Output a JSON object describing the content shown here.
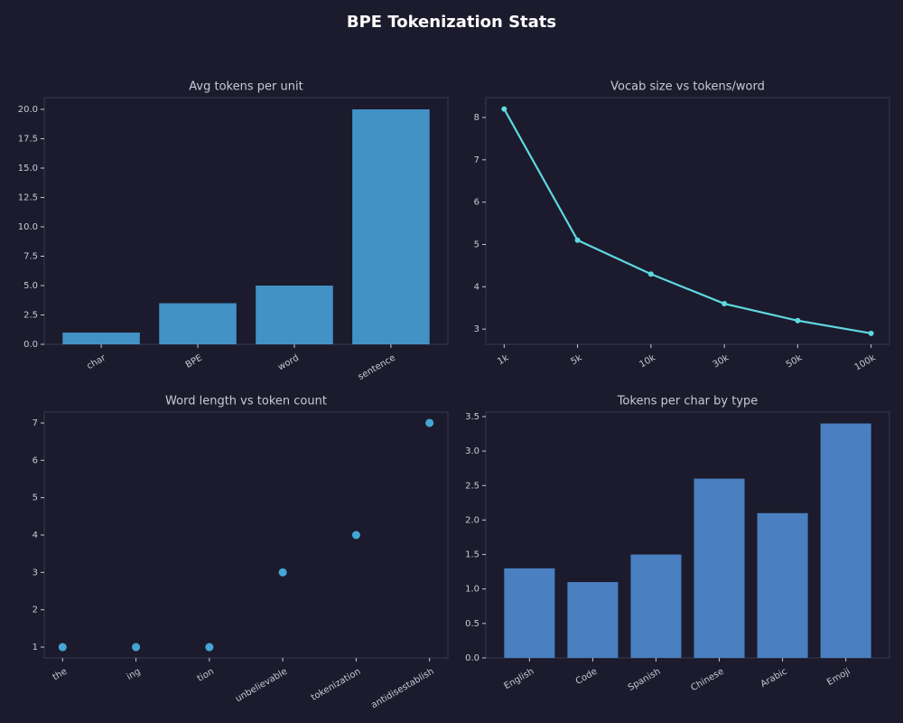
{
  "title": "BPE Tokenization Stats",
  "chart_data": [
    {
      "type": "bar",
      "title": "Avg tokens per unit",
      "categories": [
        "char",
        "BPE",
        "word",
        "sentence"
      ],
      "values": [
        1,
        3.5,
        5,
        20
      ],
      "color": "#4292c6",
      "ylim": [
        0,
        21
      ],
      "yticks": [
        {
          "value": 0,
          "label": "0.0"
        },
        2.5,
        {
          "value": 5,
          "label": "5.0"
        },
        7.5,
        {
          "value": 10,
          "label": "10.0"
        },
        12.5,
        {
          "value": 15,
          "label": "15.0"
        },
        17.5,
        {
          "value": 20,
          "label": "20.0"
        }
      ]
    },
    {
      "type": "line",
      "title": "Vocab size vs tokens/word",
      "categories": [
        "1k",
        "5k",
        "10k",
        "30k",
        "50k",
        "100k"
      ],
      "values": [
        8.2,
        5.1,
        4.3,
        3.6,
        3.2,
        2.9
      ],
      "color": "#5fd8df",
      "ylim": [
        2.64,
        8.47
      ],
      "yticks": [
        3,
        4,
        5,
        6,
        7,
        8
      ]
    },
    {
      "type": "scatter",
      "title": "Word length vs token count",
      "categories": [
        "the",
        "ing",
        "tion",
        "unbelievable",
        "tokenization",
        "antidisestablish"
      ],
      "values": [
        1,
        1,
        1,
        3,
        4,
        7
      ],
      "color": "#45a6d6",
      "ylim": [
        0.71,
        7.29
      ],
      "yticks": [
        1,
        2,
        3,
        4,
        5,
        6,
        7
      ]
    },
    {
      "type": "bar",
      "title": "Tokens per char by type",
      "categories": [
        "English",
        "Code",
        "Spanish",
        "Chinese",
        "Arabic",
        "Emoji"
      ],
      "values": [
        1.3,
        1.1,
        1.5,
        2.6,
        2.1,
        3.4
      ],
      "color": "#4a7fc1",
      "ylim": [
        0,
        3.565
      ],
      "yticks": [
        {
          "value": 0,
          "label": "0.0"
        },
        0.5,
        {
          "value": 1,
          "label": "1.0"
        },
        1.5,
        {
          "value": 2,
          "label": "2.0"
        },
        2.5,
        {
          "value": 3,
          "label": "3.0"
        },
        3.5
      ]
    }
  ]
}
